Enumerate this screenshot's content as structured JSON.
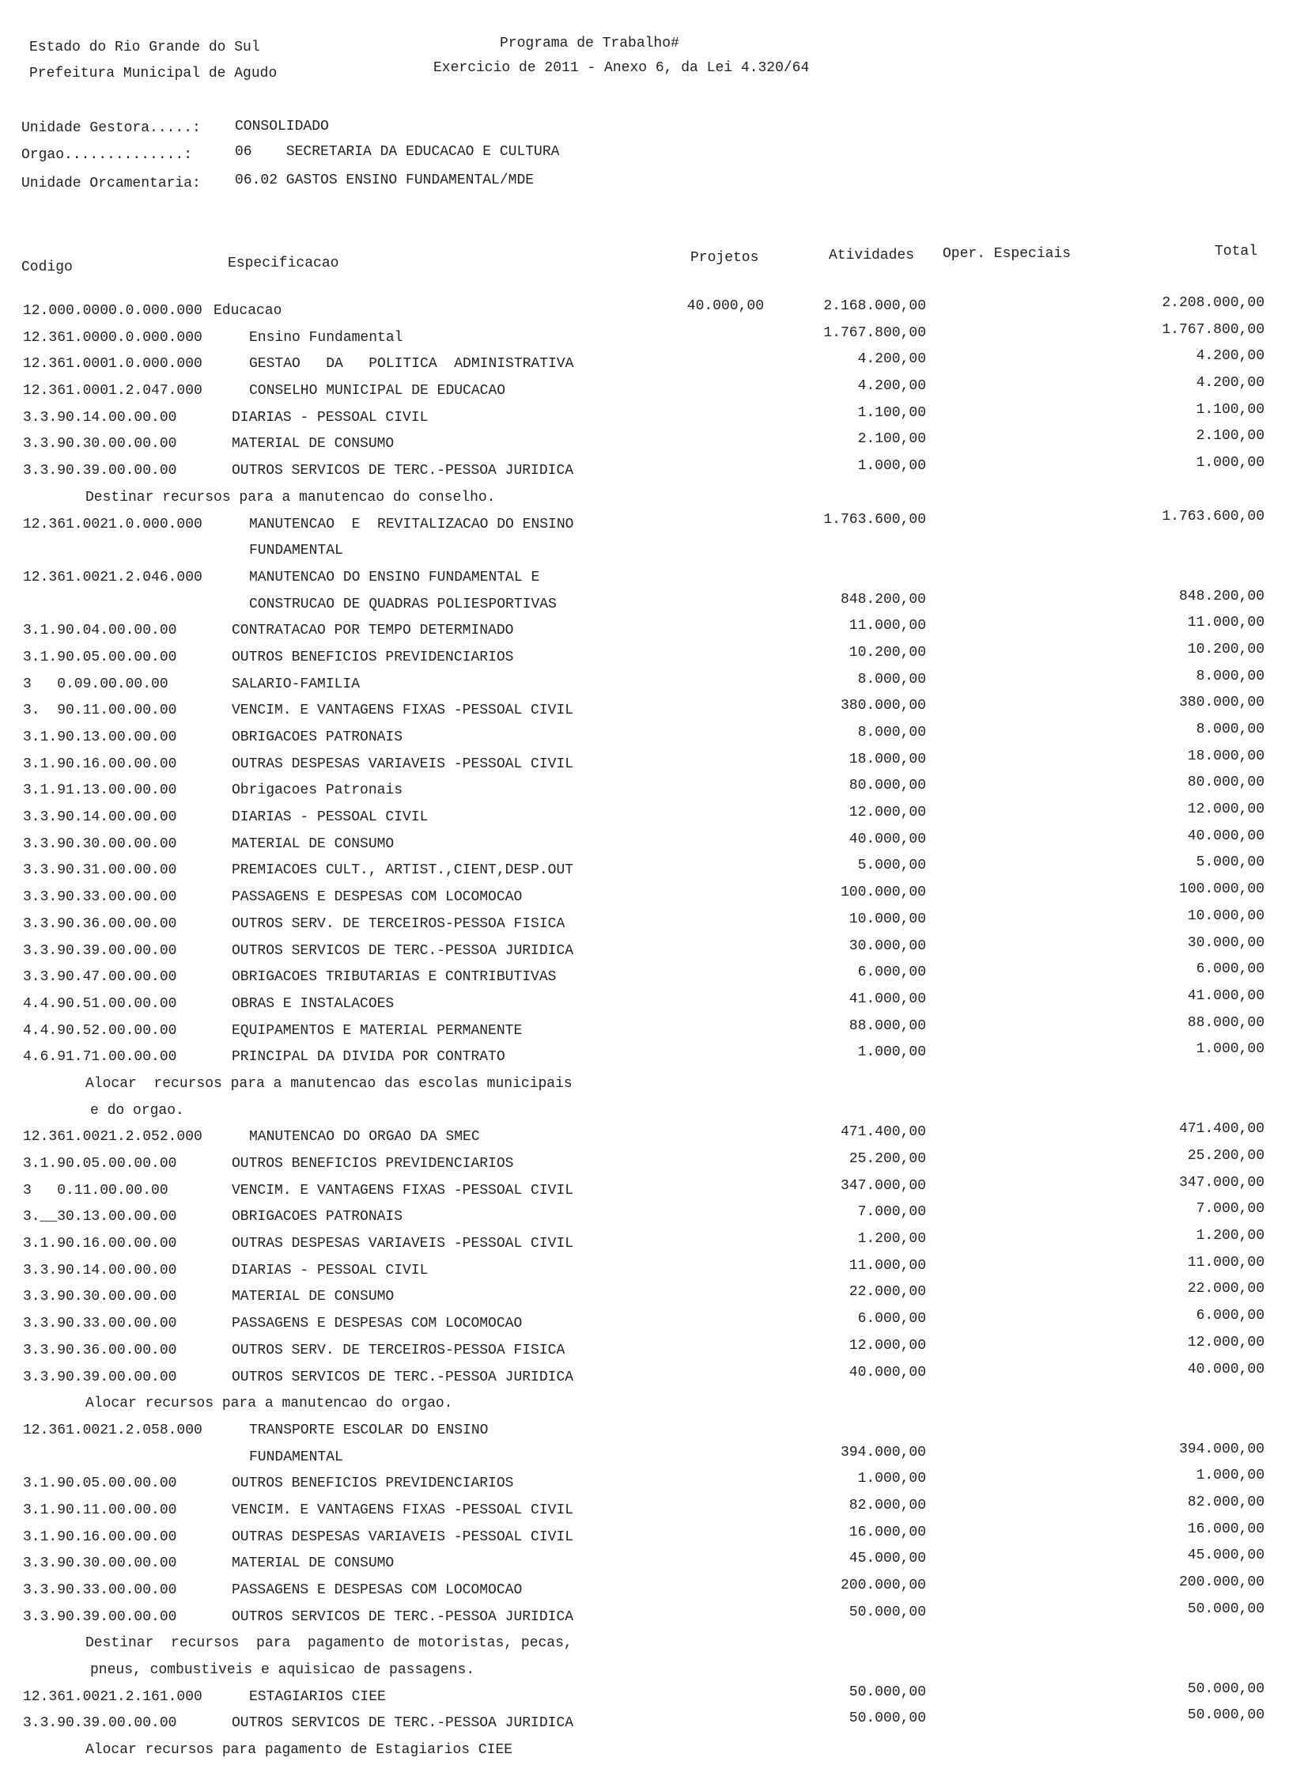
{
  "header": {
    "estado": "Estado do Rio Grande do Sul",
    "prefeitura": "Prefeitura Municipal de Agudo",
    "titulo": "Programa de Trabalho#",
    "exercicio": "Exercicio de 2011 - Anexo 6, da Lei 4.320/64",
    "unidade_gestora_label": "Unidade Gestora.....:",
    "unidade_gestora": "CONSOLIDADO",
    "orgao_label": "Orgao..............:",
    "orgao": "06    SECRETARIA DA EDUCACAO E CULTURA",
    "unidade_orcamentaria_label": "Unidade Orcamentaria:",
    "unidade_orcamentaria": "06.02 GASTOS ENSINO FUNDAMENTAL/MDE"
  },
  "columns": {
    "codigo": "Codigo",
    "especificacao": "Especificacao",
    "projetos": "Projetos",
    "atividades": "Atividades",
    "oper": "Oper. Especiais",
    "total": "Total"
  },
  "rows": [
    {
      "t": "top",
      "code": "12.000.0000.0.000.000",
      "spec": "Educacao",
      "proj": "40.000,00",
      "ativ": "2.168.000,00",
      "tot": "2.208.000,00"
    },
    {
      "t": "head",
      "code": "12.361.0000.0.000.000",
      "spec": "Ensino Fundamental",
      "ativ": "1.767.800,00",
      "tot": "1.767.800,00"
    },
    {
      "t": "head",
      "code": "12.361.0001.0.000.000",
      "spec": "GESTAO   DA   POLITICA  ADMINISTRATIVA",
      "ativ": "4.200,00",
      "tot": "4.200,00"
    },
    {
      "t": "head",
      "code": "12.361.0001.2.047.000",
      "spec": "CONSELHO MUNICIPAL DE EDUCACAO",
      "ativ": "4.200,00",
      "tot": "4.200,00"
    },
    {
      "t": "item",
      "code": "3.3.90.14.00.00.00",
      "spec": "DIARIAS - PESSOAL CIVIL",
      "ativ": "1.100,00",
      "tot": "1.100,00"
    },
    {
      "t": "item",
      "code": "3.3.90.30.00.00.00",
      "spec": "MATERIAL DE CONSUMO",
      "ativ": "2.100,00",
      "tot": "2.100,00"
    },
    {
      "t": "item",
      "code": "3.3.90.39.00.00.00",
      "spec": "OUTROS SERVICOS DE TERC.-PESSOA JURIDICA",
      "ativ": "1.000,00",
      "tot": "1.000,00"
    },
    {
      "t": "note",
      "spec": "Destinar recursos para a manutencao do conselho."
    },
    {
      "t": "head",
      "code": "12.361.0021.0.000.000",
      "spec": "MANUTENCAO  E  REVITALIZACAO DO ENSINO",
      "ativ": "1.763.600,00",
      "tot": "1.763.600,00"
    },
    {
      "t": "head",
      "spec": "FUNDAMENTAL"
    },
    {
      "t": "head",
      "code": "12.361.0021.2.046.000",
      "spec": "MANUTENCAO DO ENSINO FUNDAMENTAL E"
    },
    {
      "t": "head",
      "spec": "CONSTRUCAO DE QUADRAS POLIESPORTIVAS",
      "ativ": "848.200,00",
      "tot": "848.200,00"
    },
    {
      "t": "item",
      "code": "3.1.90.04.00.00.00",
      "spec": "CONTRATACAO POR TEMPO DETERMINADO",
      "ativ": "11.000,00",
      "tot": "11.000,00"
    },
    {
      "t": "item",
      "code": "3.1.90.05.00.00.00",
      "spec": "OUTROS BENEFICIOS PREVIDENCIARIOS",
      "ativ": "10.200,00",
      "tot": "10.200,00"
    },
    {
      "t": "item",
      "code": "3   0.09.00.00.00",
      "spec": "SALARIO-FAMILIA",
      "ativ": "8.000,00",
      "tot": "8.000,00"
    },
    {
      "t": "item",
      "code": "3.  90.11.00.00.00",
      "spec": "VENCIM. E VANTAGENS FIXAS -PESSOAL CIVIL",
      "ativ": "380.000,00",
      "tot": "380.000,00"
    },
    {
      "t": "item",
      "code": "3.1.90.13.00.00.00",
      "spec": "OBRIGACOES PATRONAIS",
      "ativ": "8.000,00",
      "tot": "8.000,00"
    },
    {
      "t": "item",
      "code": "3.1.90.16.00.00.00",
      "spec": "OUTRAS DESPESAS VARIAVEIS -PESSOAL CIVIL",
      "ativ": "18.000,00",
      "tot": "18.000,00"
    },
    {
      "t": "item",
      "code": "3.1.91.13.00.00.00",
      "spec": "Obrigacoes Patronais",
      "ativ": "80.000,00",
      "tot": "80.000,00"
    },
    {
      "t": "item",
      "code": "3.3.90.14.00.00.00",
      "spec": "DIARIAS - PESSOAL CIVIL",
      "ativ": "12.000,00",
      "tot": "12.000,00"
    },
    {
      "t": "item",
      "code": "3.3.90.30.00.00.00",
      "spec": "MATERIAL DE CONSUMO",
      "ativ": "40.000,00",
      "tot": "40.000,00"
    },
    {
      "t": "item",
      "code": "3.3.90.31.00.00.00",
      "spec": "PREMIACOES CULT., ARTIST.,CIENT,DESP.OUT",
      "ativ": "5.000,00",
      "tot": "5.000,00"
    },
    {
      "t": "item",
      "code": "3.3.90.33.00.00.00",
      "spec": "PASSAGENS E DESPESAS COM LOCOMOCAO",
      "ativ": "100.000,00",
      "tot": "100.000,00"
    },
    {
      "t": "item",
      "code": "3.3.90.36.00.00.00",
      "spec": "OUTROS SERV. DE TERCEIROS-PESSOA FISICA",
      "ativ": "10.000,00",
      "tot": "10.000,00"
    },
    {
      "t": "item",
      "code": "3.3.90.39.00.00.00",
      "spec": "OUTROS SERVICOS DE TERC.-PESSOA JURIDICA",
      "ativ": "30.000,00",
      "tot": "30.000,00"
    },
    {
      "t": "item",
      "code": "3.3.90.47.00.00.00",
      "spec": "OBRIGACOES TRIBUTARIAS E CONTRIBUTIVAS",
      "ativ": "6.000,00",
      "tot": "6.000,00"
    },
    {
      "t": "item",
      "code": "4.4.90.51.00.00.00",
      "spec": "OBRAS E INSTALACOES",
      "ativ": "41.000,00",
      "tot": "41.000,00"
    },
    {
      "t": "item",
      "code": "4.4.90.52.00.00.00",
      "spec": "EQUIPAMENTOS E MATERIAL PERMANENTE",
      "ativ": "88.000,00",
      "tot": "88.000,00"
    },
    {
      "t": "item",
      "code": "4.6.91.71.00.00.00",
      "spec": "PRINCIPAL DA DIVIDA POR CONTRATO",
      "ativ": "1.000,00",
      "tot": "1.000,00"
    },
    {
      "t": "note",
      "spec": "Alocar  recursos para a manutencao das escolas municipais"
    },
    {
      "t": "note2",
      "spec": "e do orgao."
    },
    {
      "t": "head",
      "code": "12.361.0021.2.052.000",
      "spec": "MANUTENCAO DO ORGAO DA SMEC",
      "ativ": "471.400,00",
      "tot": "471.400,00"
    },
    {
      "t": "item",
      "code": "3.1.90.05.00.00.00",
      "spec": "OUTROS BENEFICIOS PREVIDENCIARIOS",
      "ativ": "25.200,00",
      "tot": "25.200,00"
    },
    {
      "t": "item",
      "code": "3   0.11.00.00.00",
      "spec": "VENCIM. E VANTAGENS FIXAS -PESSOAL CIVIL",
      "ativ": "347.000,00",
      "tot": "347.000,00"
    },
    {
      "t": "item",
      "code": "3.__30.13.00.00.00",
      "spec": "OBRIGACOES PATRONAIS",
      "ativ": "7.000,00",
      "tot": "7.000,00"
    },
    {
      "t": "item",
      "code": "3.1.90.16.00.00.00",
      "spec": "OUTRAS DESPESAS VARIAVEIS -PESSOAL CIVIL",
      "ativ": "1.200,00",
      "tot": "1.200,00"
    },
    {
      "t": "item",
      "code": "3.3.90.14.00.00.00",
      "spec": "DIARIAS - PESSOAL CIVIL",
      "ativ": "11.000,00",
      "tot": "11.000,00"
    },
    {
      "t": "item",
      "code": "3.3.90.30.00.00.00",
      "spec": "MATERIAL DE CONSUMO",
      "ativ": "22.000,00",
      "tot": "22.000,00"
    },
    {
      "t": "item",
      "code": "3.3.90.33.00.00.00",
      "spec": "PASSAGENS E DESPESAS COM LOCOMOCAO",
      "ativ": "6.000,00",
      "tot": "6.000,00"
    },
    {
      "t": "item",
      "code": "3.3.90.36.00.00.00",
      "spec": "OUTROS SERV. DE TERCEIROS-PESSOA FISICA",
      "ativ": "12.000,00",
      "tot": "12.000,00"
    },
    {
      "t": "item",
      "code": "3.3.90.39.00.00.00",
      "spec": "OUTROS SERVICOS DE TERC.-PESSOA JURIDICA",
      "ativ": "40.000,00",
      "tot": "40.000,00"
    },
    {
      "t": "note",
      "spec": "Alocar recursos para a manutencao do orgao."
    },
    {
      "t": "head",
      "code": "12.361.0021.2.058.000",
      "spec": "TRANSPORTE ESCOLAR DO ENSINO"
    },
    {
      "t": "head",
      "spec": "FUNDAMENTAL",
      "ativ": "394.000,00",
      "tot": "394.000,00"
    },
    {
      "t": "item",
      "code": "3.1.90.05.00.00.00",
      "spec": "OUTROS BENEFICIOS PREVIDENCIARIOS",
      "ativ": "1.000,00",
      "tot": "1.000,00"
    },
    {
      "t": "item",
      "code": "3.1.90.11.00.00.00",
      "spec": "VENCIM. E VANTAGENS FIXAS -PESSOAL CIVIL",
      "ativ": "82.000,00",
      "tot": "82.000,00"
    },
    {
      "t": "item",
      "code": "3.1.90.16.00.00.00",
      "spec": "OUTRAS DESPESAS VARIAVEIS -PESSOAL CIVIL",
      "ativ": "16.000,00",
      "tot": "16.000,00"
    },
    {
      "t": "item",
      "code": "3.3.90.30.00.00.00",
      "spec": "MATERIAL DE CONSUMO",
      "ativ": "45.000,00",
      "tot": "45.000,00"
    },
    {
      "t": "item",
      "code": "3.3.90.33.00.00.00",
      "spec": "PASSAGENS E DESPESAS COM LOCOMOCAO",
      "ativ": "200.000,00",
      "tot": "200.000,00"
    },
    {
      "t": "item",
      "code": "3.3.90.39.00.00.00",
      "spec": "OUTROS SERVICOS DE TERC.-PESSOA JURIDICA",
      "ativ": "50.000,00",
      "tot": "50.000,00"
    },
    {
      "t": "note",
      "spec": "Destinar  recursos  para  pagamento de motoristas, pecas,"
    },
    {
      "t": "note2",
      "spec": "pneus, combustiveis e aquisicao de passagens."
    },
    {
      "t": "head",
      "code": "12.361.0021.2.161.000",
      "spec": "ESTAGIARIOS CIEE",
      "ativ": "50.000,00",
      "tot": "50.000,00"
    },
    {
      "t": "item",
      "code": "3.3.90.39.00.00.00",
      "spec": "OUTROS SERVICOS DE TERC.-PESSOA JURIDICA",
      "ativ": "50.000,00",
      "tot": "50.000,00"
    },
    {
      "t": "note",
      "spec": "Alocar recursos para pagamento de Estagiarios CIEE"
    }
  ]
}
